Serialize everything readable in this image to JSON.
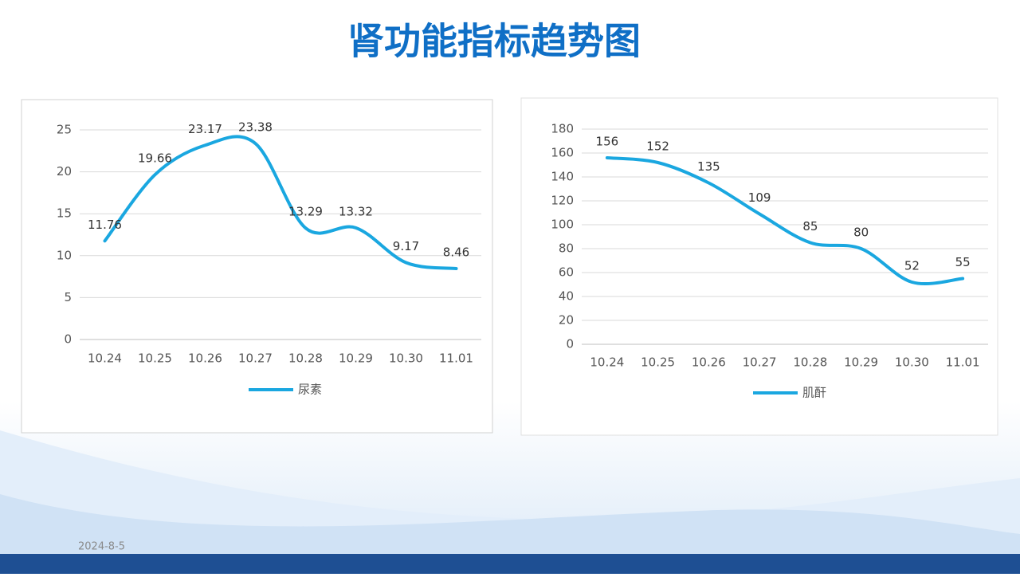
{
  "slide": {
    "title": "肾功能指标趋势图",
    "date": "2024-8-5"
  },
  "chart_data": [
    {
      "type": "line",
      "categories": [
        "10.24",
        "10.25",
        "10.26",
        "10.27",
        "10.28",
        "10.29",
        "10.30",
        "11.01"
      ],
      "series": [
        {
          "name": "尿素",
          "color": "#1aa7e0",
          "values": [
            11.76,
            19.66,
            23.17,
            23.38,
            13.29,
            13.32,
            9.17,
            8.46
          ]
        }
      ],
      "ylim": [
        0,
        25
      ],
      "yticks": [
        0,
        5,
        10,
        15,
        20,
        25
      ],
      "grid": true,
      "legend": "bottom",
      "data_labels": true
    },
    {
      "type": "line",
      "categories": [
        "10.24",
        "10.25",
        "10.26",
        "10.27",
        "10.28",
        "10.29",
        "10.30",
        "11.01"
      ],
      "series": [
        {
          "name": "肌酐",
          "color": "#1aa7e0",
          "values": [
            156,
            152,
            135,
            109,
            85,
            80,
            52,
            55
          ]
        }
      ],
      "ylim": [
        0,
        180
      ],
      "yticks": [
        0,
        20,
        40,
        60,
        80,
        100,
        120,
        140,
        160,
        180
      ],
      "grid": true,
      "legend": "bottom",
      "data_labels": true
    }
  ]
}
